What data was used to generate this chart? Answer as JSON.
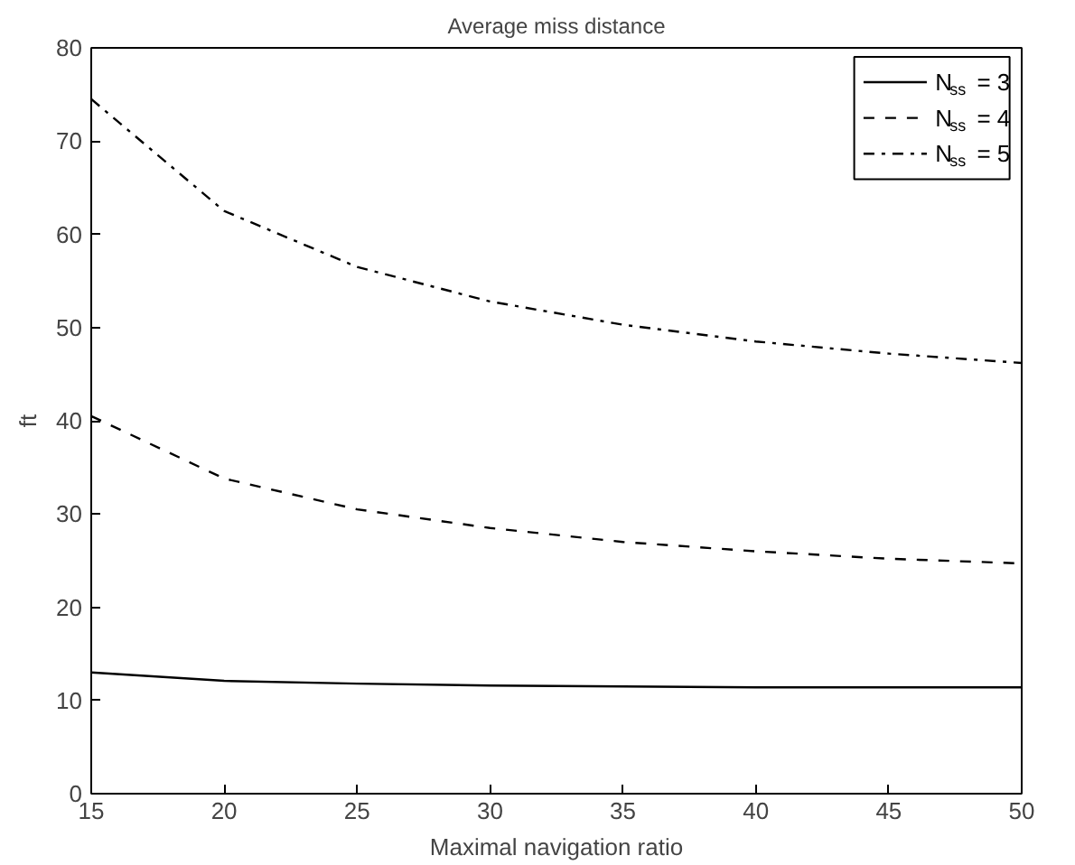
{
  "chart_data": {
    "type": "line",
    "title": "Average miss distance",
    "xlabel": "Maximal navigation ratio",
    "ylabel": "ft",
    "x": [
      15,
      20,
      25,
      30,
      35,
      40,
      45,
      50
    ],
    "series": [
      {
        "name": "N$_{ss}$ = 3",
        "color": "#000000",
        "line_style": "solid",
        "values": [
          13,
          12.1,
          11.8,
          11.6,
          11.5,
          11.4,
          11.4,
          11.4
        ]
      },
      {
        "name": "N$_{ss}$ = 4",
        "color": "#000000",
        "line_style": "dashed",
        "values": [
          40.5,
          33.8,
          30.5,
          28.5,
          27,
          26,
          25.2,
          24.7
        ]
      },
      {
        "name": "N$_{ss}$ = 5",
        "color": "#000000",
        "line_style": "dashdot",
        "values": [
          74.5,
          62.5,
          56.5,
          52.8,
          50.3,
          48.5,
          47.2,
          46.2
        ]
      }
    ],
    "xlim": [
      15,
      50
    ],
    "xticks": [
      15,
      20,
      25,
      30,
      35,
      40,
      45,
      50
    ],
    "ylim": [
      0,
      80
    ],
    "yticks": [
      0,
      10,
      20,
      30,
      40,
      50,
      60,
      70,
      80
    ],
    "grid": false,
    "legend": "top right",
    "marker": "none"
  }
}
